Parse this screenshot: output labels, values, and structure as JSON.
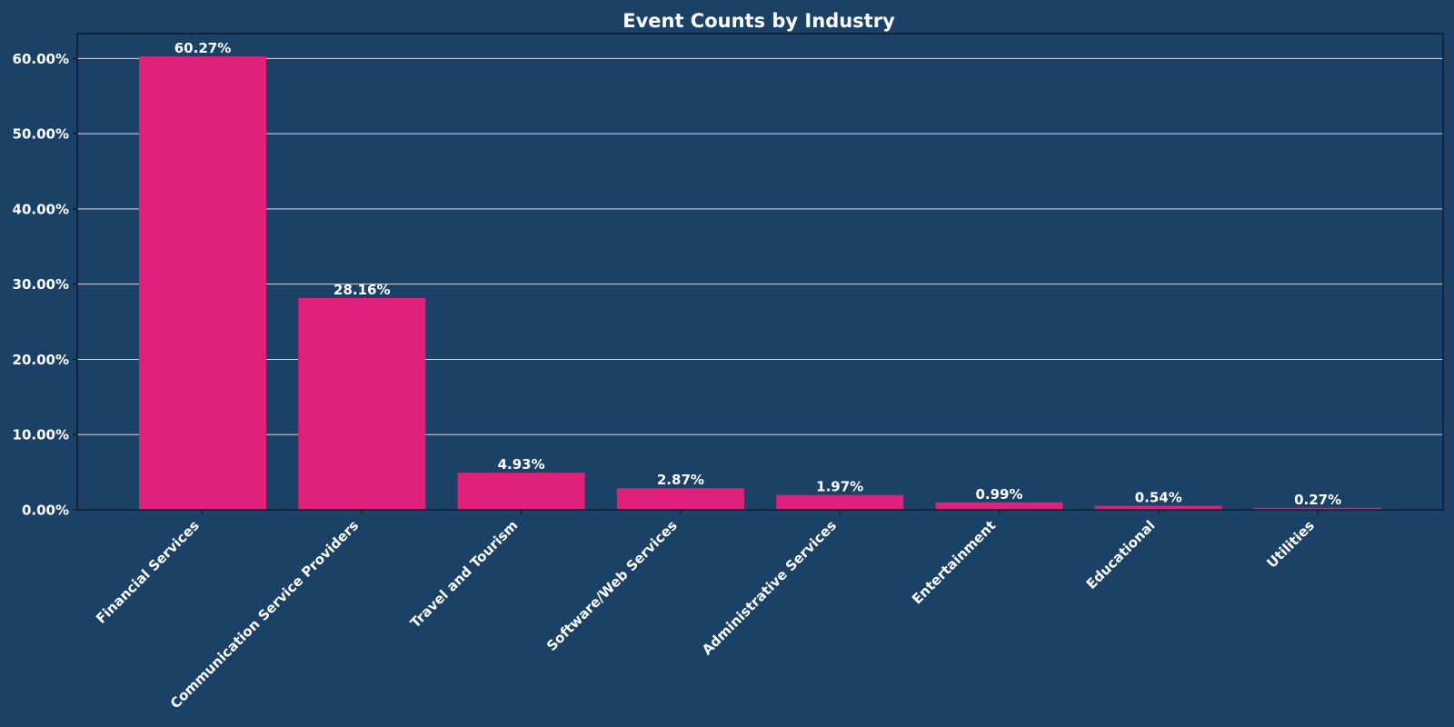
{
  "chart_data": {
    "type": "bar",
    "title": "Event Counts by Industry",
    "xlabel": "",
    "ylabel": "",
    "ylim": [
      0,
      63.3
    ],
    "yticks": [
      0,
      10,
      20,
      30,
      40,
      50,
      60
    ],
    "ytick_labels": [
      "0.00%",
      "10.00%",
      "20.00%",
      "30.00%",
      "40.00%",
      "50.00%",
      "60.00%"
    ],
    "grid": "horizontal",
    "legend": "none",
    "categories": [
      "Financial Services",
      "Communication Service Providers",
      "Travel and Tourism",
      "Software/Web Services",
      "Administrative Services",
      "Entertainment",
      "Educational",
      "Utilities"
    ],
    "values": [
      60.27,
      28.16,
      4.93,
      2.87,
      1.97,
      0.99,
      0.54,
      0.27
    ],
    "value_labels": [
      "60.27%",
      "28.16%",
      "4.93%",
      "2.87%",
      "1.97%",
      "0.99%",
      "0.54%",
      "0.27%"
    ]
  },
  "colors": {
    "background": "#1c4166",
    "bar": "#e0207a",
    "text": "#ffffff",
    "grid": "#d6dde6",
    "axis": "#0d1a26"
  }
}
